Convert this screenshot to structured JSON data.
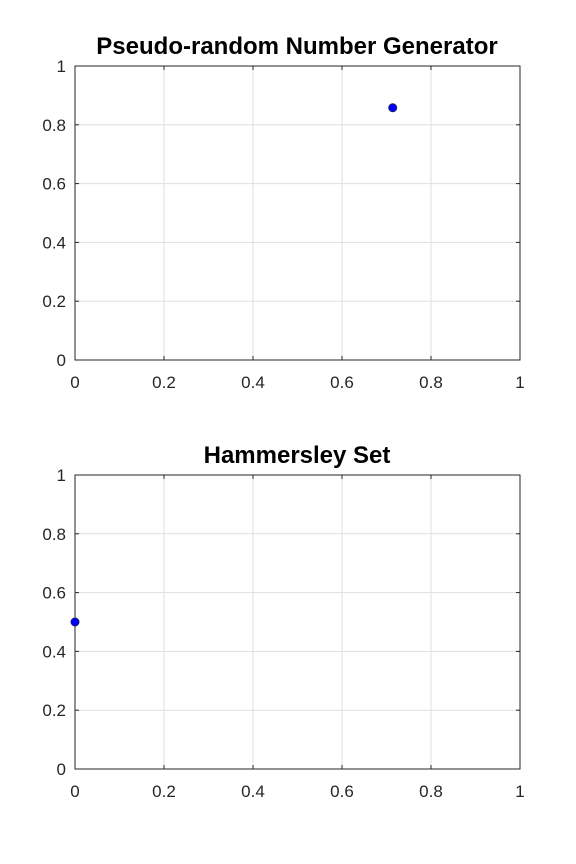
{
  "chart_data": [
    {
      "type": "scatter",
      "title": "Pseudo-random Number Generator",
      "xlabel": "",
      "ylabel": "",
      "xlim": [
        0,
        1
      ],
      "ylim": [
        0,
        1
      ],
      "xticks": [
        "0",
        "0.2",
        "0.4",
        "0.6",
        "0.8",
        "1"
      ],
      "yticks": [
        "0",
        "0.2",
        "0.4",
        "0.6",
        "0.8",
        "1"
      ],
      "grid": true,
      "marker_color": "#0000ff",
      "points": [
        {
          "x": 0.714,
          "y": 0.858
        }
      ]
    },
    {
      "type": "scatter",
      "title": "Hammersley Set",
      "xlabel": "",
      "ylabel": "",
      "xlim": [
        0,
        1
      ],
      "ylim": [
        0,
        1
      ],
      "xticks": [
        "0",
        "0.2",
        "0.4",
        "0.6",
        "0.8",
        "1"
      ],
      "yticks": [
        "0",
        "0.2",
        "0.4",
        "0.6",
        "0.8",
        "1"
      ],
      "grid": true,
      "marker_color": "#0000ff",
      "points": [
        {
          "x": 0.0,
          "y": 0.5
        }
      ]
    }
  ]
}
